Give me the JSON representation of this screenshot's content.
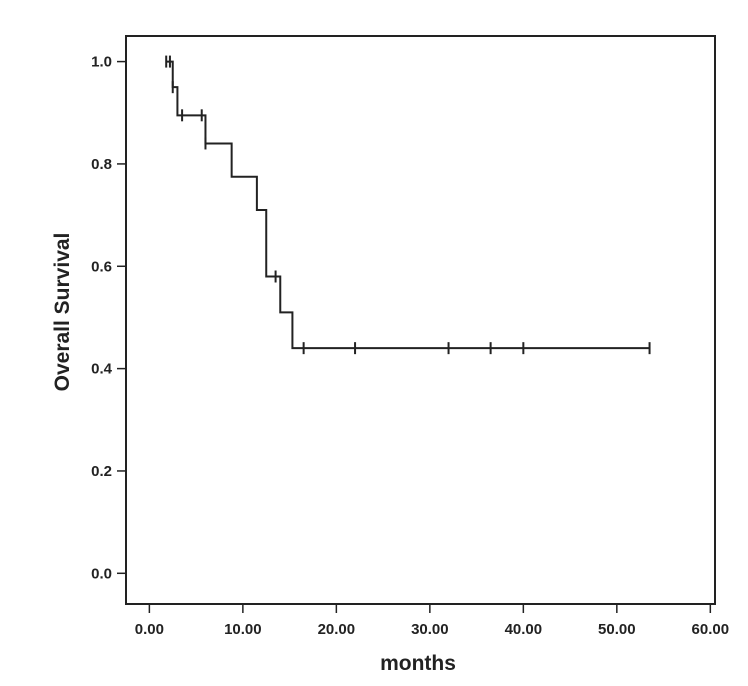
{
  "chart_data": {
    "type": "line",
    "subtype": "kaplan-meier",
    "title": "",
    "xlabel": "months",
    "ylabel": "Overall Survival",
    "xlim": [
      -2.5,
      60.5
    ],
    "ylim": [
      -0.06,
      1.05
    ],
    "x_ticks": [
      0,
      10,
      20,
      30,
      40,
      50,
      60
    ],
    "x_tick_labels": [
      "0.00",
      "10.00",
      "20.00",
      "30.00",
      "40.00",
      "50.00",
      "60.00"
    ],
    "y_ticks": [
      0.0,
      0.2,
      0.4,
      0.6,
      0.8,
      1.0
    ],
    "y_tick_labels": [
      "0.0",
      "0.2",
      "0.4",
      "0.6",
      "0.8",
      "1.0"
    ],
    "grid": false,
    "legend": "none",
    "colors": {
      "line": "#222222",
      "frame": "#222222",
      "background": "#ffffff"
    },
    "series": [
      {
        "steps": [
          [
            0.0,
            1.0
          ],
          [
            2.5,
            0.95
          ],
          [
            3.0,
            0.895
          ],
          [
            6.0,
            0.84
          ],
          [
            8.8,
            0.775
          ],
          [
            11.5,
            0.71
          ],
          [
            12.5,
            0.58
          ],
          [
            14.0,
            0.51
          ],
          [
            15.3,
            0.44
          ]
        ],
        "end_x": 53.5,
        "censored": [
          [
            1.8,
            1.0
          ],
          [
            2.2,
            1.0
          ],
          [
            2.5,
            0.95
          ],
          [
            3.5,
            0.895
          ],
          [
            5.6,
            0.895
          ],
          [
            6.0,
            0.84
          ],
          [
            13.5,
            0.58
          ],
          [
            16.5,
            0.44
          ],
          [
            22.0,
            0.44
          ],
          [
            32.0,
            0.44
          ],
          [
            36.5,
            0.44
          ],
          [
            40.0,
            0.44
          ],
          [
            53.5,
            0.44
          ]
        ]
      }
    ]
  }
}
